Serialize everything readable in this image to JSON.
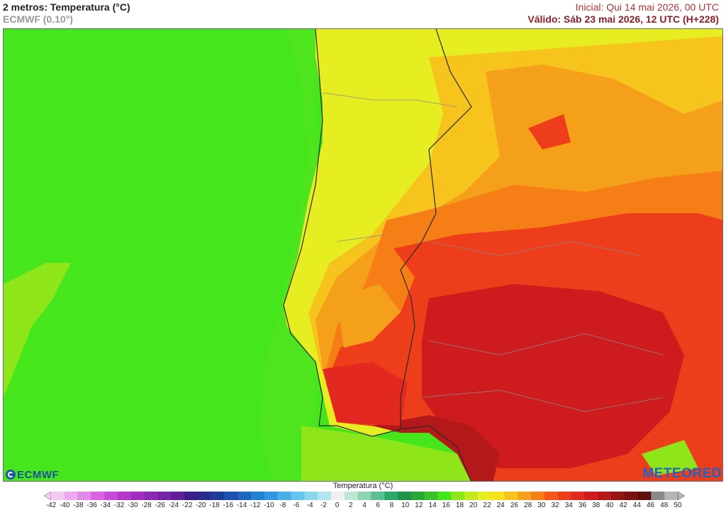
{
  "header": {
    "title": "2 metros: Temperatura (°C)",
    "model": "ECMWF (0.10°)",
    "initial": "Inicial: Qui 14 mai 2026, 00 UTC",
    "valid": "Válido: Sáb 23 mai 2026, 12 UTC (H+228)"
  },
  "logos": {
    "left": "ECMWF",
    "right": "METEORED"
  },
  "legend": {
    "title": "Temperatura (°C)",
    "ticks": [
      "-42",
      "-40",
      "-38",
      "-36",
      "-34",
      "-32",
      "-30",
      "-28",
      "-26",
      "-24",
      "-22",
      "-20",
      "-18",
      "-16",
      "-14",
      "-12",
      "-10",
      "-8",
      "-6",
      "-4",
      "-2",
      "0",
      "2",
      "4",
      "6",
      "8",
      "10",
      "12",
      "14",
      "16",
      "18",
      "20",
      "22",
      "24",
      "26",
      "28",
      "30",
      "32",
      "34",
      "36",
      "38",
      "40",
      "42",
      "44",
      "46",
      "48",
      "50"
    ],
    "colors": [
      "#f6c8f4",
      "#eeaaf0",
      "#e487ea",
      "#d864e2",
      "#c94ad8",
      "#b738cc",
      "#a02ec2",
      "#8a28b5",
      "#7424a8",
      "#5e1f98",
      "#3a1c8a",
      "#2a2a8c",
      "#1e3c9c",
      "#1c50b0",
      "#1d66c4",
      "#2380d4",
      "#2f98de",
      "#45b0e6",
      "#64c6ec",
      "#8ad8f0",
      "#b0e6f4",
      "#f0f0f0",
      "#bfe6d2",
      "#8ed4b4",
      "#5cc094",
      "#2ea66c",
      "#1e9448",
      "#2aa836",
      "#39c02a",
      "#46e61d",
      "#8ee61a",
      "#c0ea1e",
      "#e6ee22",
      "#f5e11e",
      "#f6c41c",
      "#f5a01a",
      "#f57e17",
      "#f45a16",
      "#ee3d1a",
      "#e22820",
      "#ce1c1e",
      "#b41818",
      "#961414",
      "#7a1212",
      "#5e1010",
      "#8a8a8a",
      "#b5b5b5"
    ]
  },
  "map": {
    "region": "Iberian Peninsula",
    "sea_color": "#46e61d"
  }
}
